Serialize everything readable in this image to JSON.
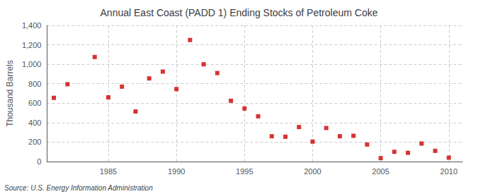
{
  "chart_data": {
    "type": "scatter",
    "title": "Annual East Coast (PADD 1) Ending Stocks of Petroleum Coke",
    "ylabel": "Thousand Barrels",
    "annotation": "Source: U.S. Energy Information Administration",
    "x": [
      1981,
      1982,
      1984,
      1985,
      1986,
      1987,
      1988,
      1989,
      1990,
      1991,
      1992,
      1993,
      1994,
      1995,
      1996,
      1997,
      1998,
      1999,
      2000,
      2001,
      2002,
      2003,
      2004,
      2005,
      2006,
      2007,
      2008,
      2009,
      2010
    ],
    "values": [
      655,
      795,
      1075,
      660,
      770,
      515,
      855,
      925,
      745,
      1250,
      1000,
      910,
      625,
      545,
      465,
      260,
      255,
      355,
      205,
      345,
      260,
      265,
      175,
      35,
      100,
      90,
      185,
      110,
      40
    ],
    "color": "#cc0000",
    "marker": "square",
    "xlim": [
      1980.5,
      2011
    ],
    "ylim": [
      0,
      1400
    ],
    "xticks": [
      1985,
      1990,
      1995,
      2000,
      2005,
      2010
    ],
    "yticks": [
      0,
      200,
      400,
      600,
      800,
      {
        "value": 1000,
        "label": "1,000"
      },
      {
        "value": 1200,
        "label": "1,200"
      },
      {
        "value": 1400,
        "label": "1,400"
      }
    ],
    "grid": true
  }
}
